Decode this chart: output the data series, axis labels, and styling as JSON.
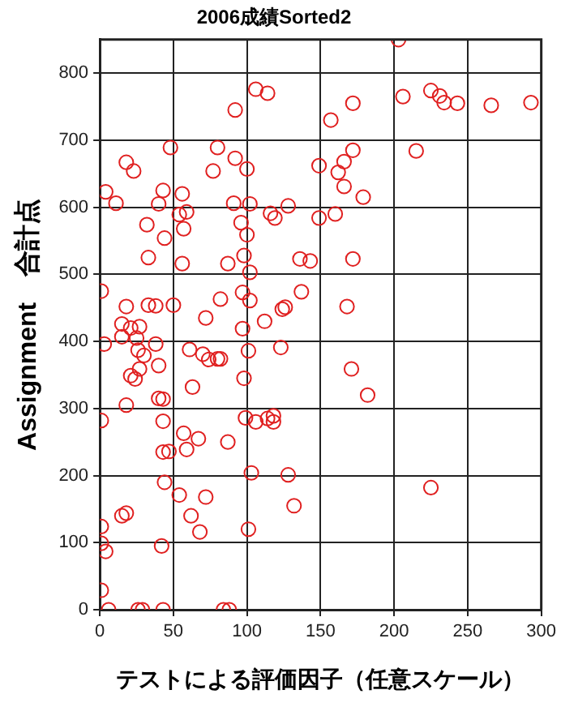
{
  "chart_data": {
    "type": "scatter",
    "title": "2006成績Sorted2",
    "xlabel": "テストによる評価因子（任意スケール）",
    "ylabel": "Assignment　合計点",
    "xlim": [
      0,
      300
    ],
    "xticks": [
      0,
      50,
      100,
      150,
      200,
      250,
      300
    ],
    "ylim": [
      0,
      850
    ],
    "yticks": [
      0,
      100,
      200,
      300,
      400,
      500,
      600,
      700,
      800
    ],
    "grid": true,
    "marker": "circle",
    "legend": false,
    "series": [
      {
        "color": "#e02020",
        "x": [
          203,
          206,
          225,
          231,
          234,
          243,
          266,
          293,
          106,
          114,
          92,
          157,
          172,
          215,
          172,
          166,
          162,
          166,
          179,
          160,
          149,
          149,
          48,
          80,
          92,
          77,
          100,
          18,
          23,
          4,
          11,
          43,
          56,
          40,
          59,
          54,
          57,
          91,
          102,
          128,
          116,
          119,
          96,
          100,
          32,
          44,
          33,
          56,
          87,
          98,
          102,
          136,
          143,
          172,
          1,
          18,
          33,
          38,
          50,
          72,
          82,
          97,
          102,
          112,
          124,
          126,
          137,
          168,
          15,
          15,
          21,
          27,
          25,
          26,
          3,
          38,
          30,
          27,
          21,
          24,
          40,
          61,
          70,
          74,
          80,
          82,
          97,
          101,
          123,
          98,
          63,
          182,
          171,
          18,
          40,
          43,
          1,
          43,
          99,
          106,
          114,
          118,
          118,
          57,
          67,
          59,
          47,
          43,
          87,
          44,
          128,
          103,
          54,
          72,
          132,
          225,
          62,
          15,
          18,
          68,
          101,
          1,
          1,
          4,
          42,
          1,
          6,
          26,
          29,
          43,
          84,
          88
        ],
        "values": [
          850,
          765,
          774,
          766,
          756,
          755,
          752,
          756,
          776,
          770,
          745,
          730,
          755,
          684,
          685,
          668,
          652,
          631,
          615,
          590,
          584,
          662,
          689,
          689,
          673,
          654,
          657,
          667,
          654,
          623,
          606,
          625,
          620,
          605,
          593,
          589,
          568,
          606,
          605,
          602,
          591,
          584,
          577,
          559,
          574,
          554,
          525,
          516,
          516,
          528,
          503,
          523,
          520,
          523,
          475,
          452,
          454,
          453,
          454,
          435,
          463,
          473,
          461,
          430,
          448,
          451,
          474,
          452,
          426,
          407,
          420,
          422,
          405,
          387,
          396,
          396,
          379,
          359,
          349,
          344,
          364,
          388,
          381,
          373,
          374,
          374,
          419,
          386,
          391,
          345,
          332,
          320,
          359,
          305,
          315,
          314,
          282,
          281,
          286,
          280,
          285,
          280,
          289,
          263,
          255,
          239,
          236,
          235,
          250,
          190,
          201,
          204,
          171,
          168,
          155,
          182,
          140,
          140,
          144,
          116,
          120,
          124,
          99,
          87,
          95,
          29,
          0,
          0,
          0,
          0,
          0,
          0
        ]
      }
    ]
  }
}
